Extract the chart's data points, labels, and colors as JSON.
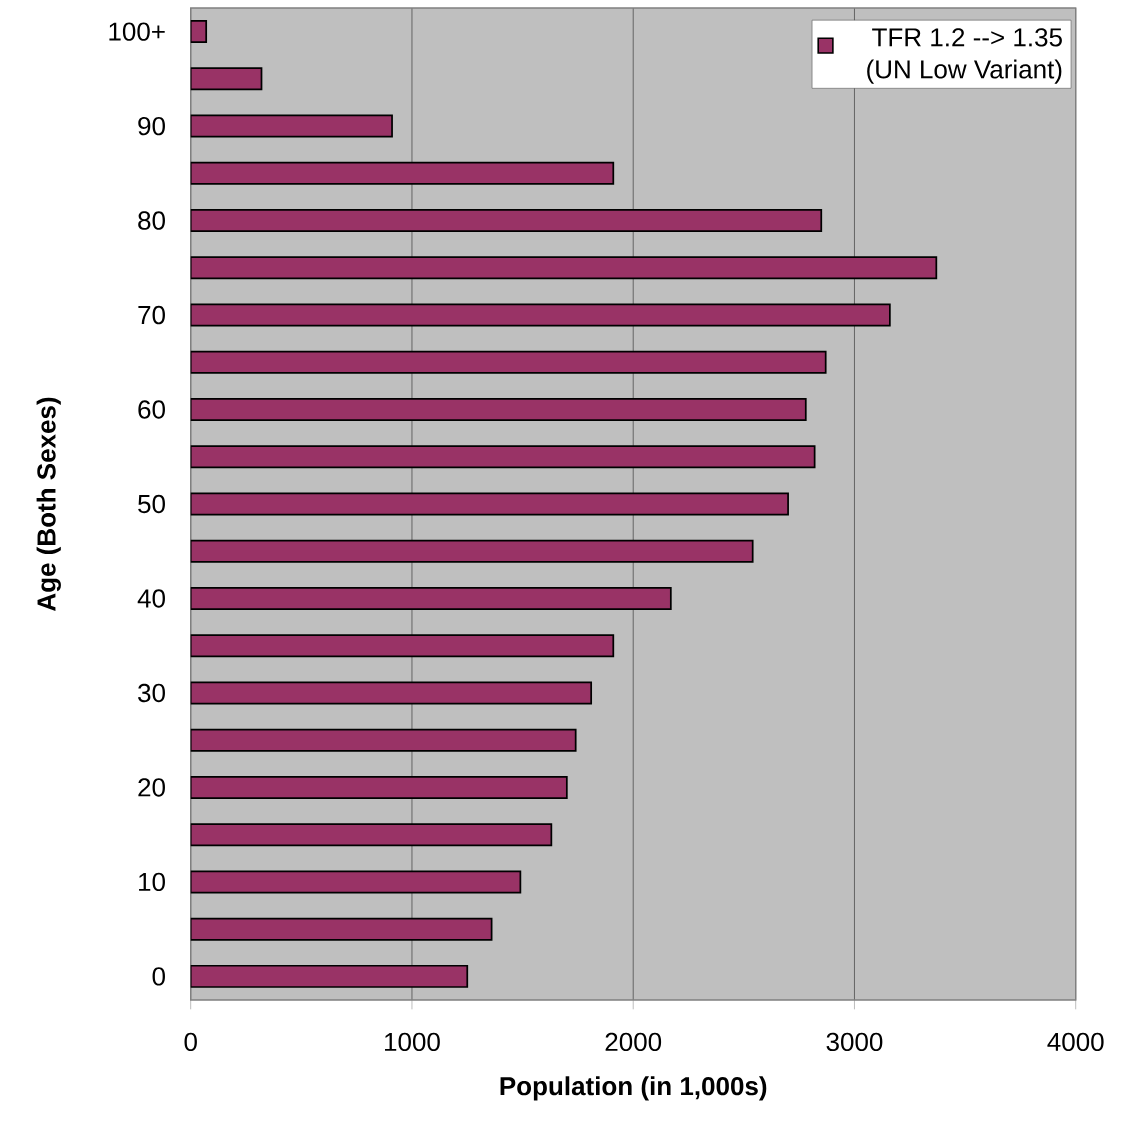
{
  "chart_data": {
    "type": "bar",
    "orientation": "horizontal",
    "xlabel": "Population (in 1,000s)",
    "ylabel": "Age (Both Sexes)",
    "categories": [
      "100+",
      null,
      "90",
      null,
      "80",
      null,
      "70",
      null,
      "60",
      null,
      "50",
      null,
      "40",
      null,
      "30",
      null,
      "20",
      null,
      "10",
      null,
      "0"
    ],
    "series": [
      {
        "name": "TFR 1.2 --> 1.35 (UN Low Variant)",
        "color": "#993366",
        "values": [
          70,
          320,
          910,
          1910,
          2850,
          3370,
          3160,
          2870,
          2780,
          2820,
          2700,
          2540,
          2170,
          1910,
          1810,
          1740,
          1700,
          1630,
          1490,
          1360,
          1250
        ]
      }
    ],
    "xlim": [
      0,
      4000
    ],
    "xticks": [
      0,
      1000,
      2000,
      3000,
      4000
    ],
    "grid": "x",
    "legend": "top right"
  }
}
